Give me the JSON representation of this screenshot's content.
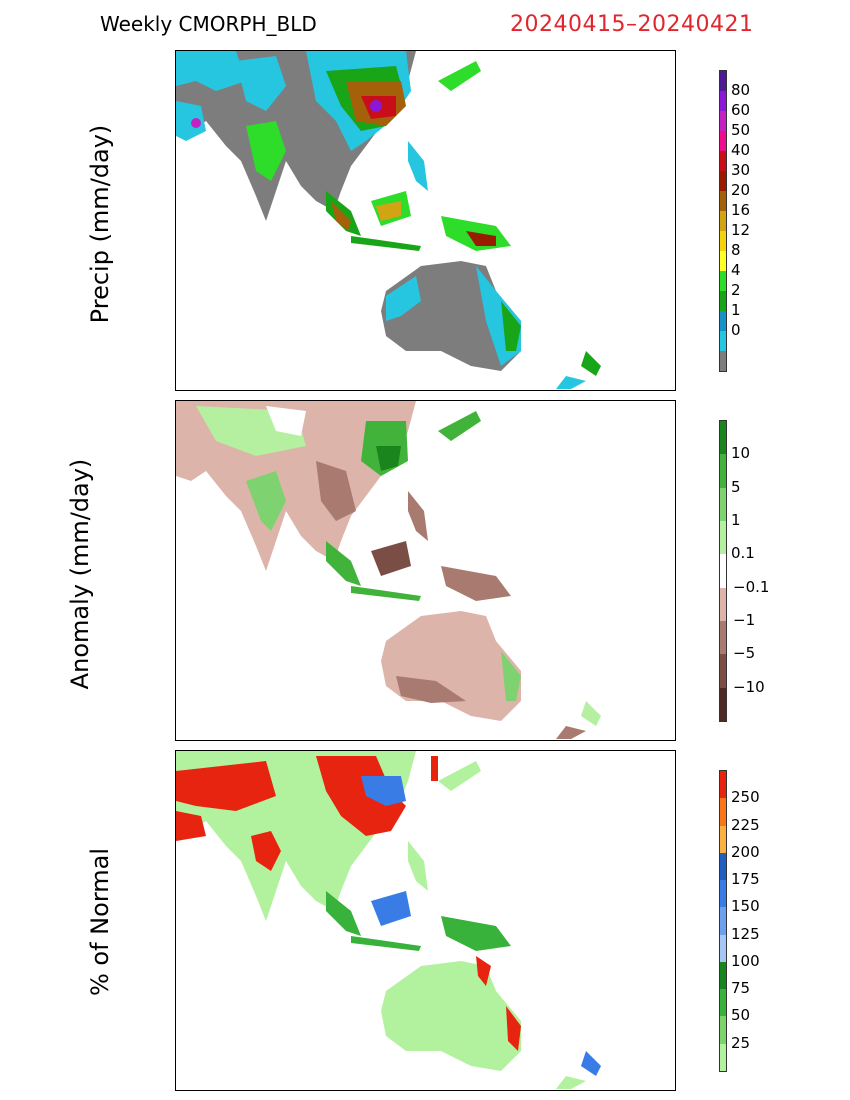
{
  "header": {
    "title": "Weekly CMORPH_BLD",
    "date_range": "20240415–20240421"
  },
  "panels": [
    {
      "ylabel": "Precip (mm/day)",
      "colorbar": {
        "colors": [
          "#4d1b96",
          "#8c17d8",
          "#c321c3",
          "#f00a8c",
          "#c80f19",
          "#9a1c00",
          "#a5600a",
          "#d2a312",
          "#f3d20e",
          "#ffff2a",
          "#2edc2a",
          "#18a618",
          "#1592c8",
          "#27c6e0",
          "#7d7d7d"
        ],
        "labels": [
          "80",
          "60",
          "50",
          "40",
          "30",
          "20",
          "16",
          "12",
          "8",
          "4",
          "2",
          "1",
          "0"
        ]
      }
    },
    {
      "ylabel": "Anomaly (mm/day)",
      "colorbar": {
        "colors": [
          "#19851c",
          "#42b33a",
          "#7ed26f",
          "#b4f0a0",
          "#ffffff",
          "#dcb4aa",
          "#a87a70",
          "#7a4e45",
          "#4f2a22"
        ],
        "labels": [
          "10",
          "5",
          "1",
          "0.1",
          "−0.1",
          "−1",
          "−5",
          "−10"
        ]
      }
    },
    {
      "ylabel": "% of Normal",
      "colorbar": {
        "colors": [
          "#e6240f",
          "#f8751a",
          "#fbb142",
          "#205fc0",
          "#3a7ce6",
          "#6aa0ee",
          "#a6c6f6",
          "#18841e",
          "#38b23a",
          "#7ad46a",
          "#b2f29e"
        ],
        "labels": [
          "250",
          "225",
          "200",
          "175",
          "150",
          "125",
          "100",
          "75",
          "50",
          "25"
        ]
      }
    }
  ]
}
